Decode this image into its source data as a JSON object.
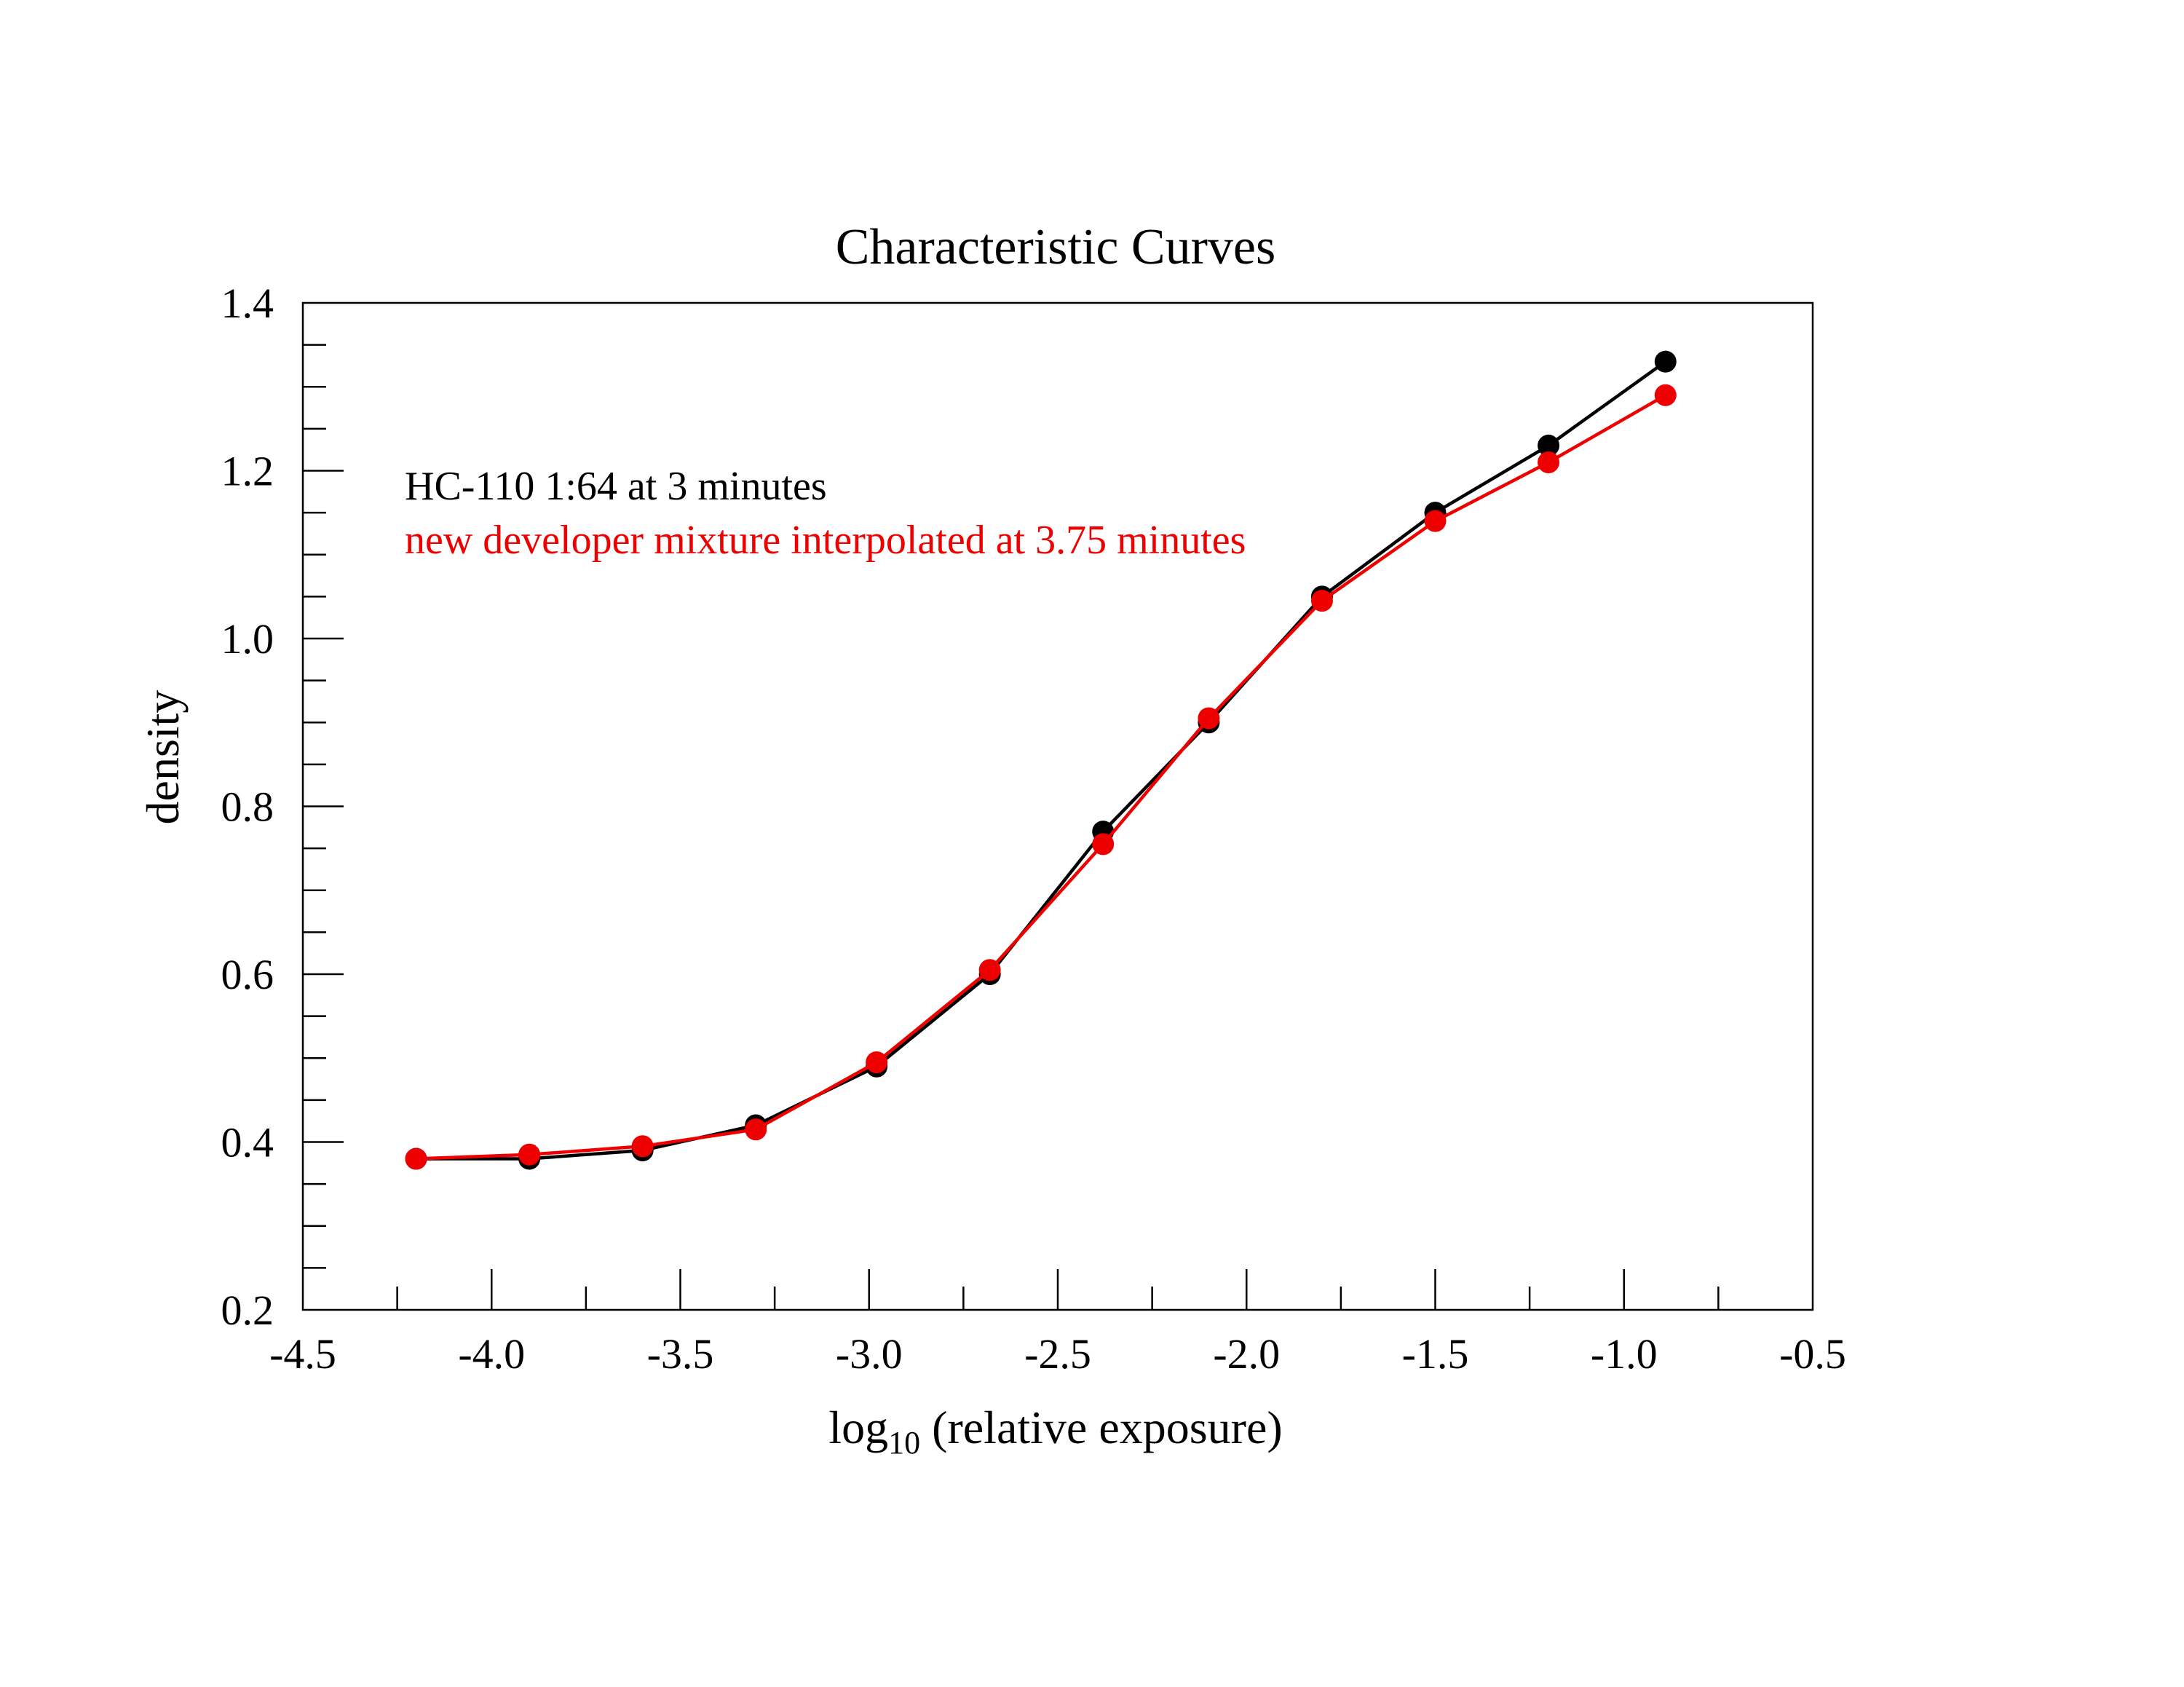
{
  "chart_data": {
    "type": "line",
    "title": "Characteristic Curves",
    "xlabel": {
      "prefix": "log",
      "subscript": "10",
      "suffix": " (relative exposure)"
    },
    "ylabel": "density",
    "xlim": [
      -4.5,
      -0.5
    ],
    "ylim": [
      0.2,
      1.4
    ],
    "x_major_ticks": [
      -4.5,
      -4.0,
      -3.5,
      -3.0,
      -2.5,
      -2.0,
      -1.5,
      -1.0,
      -0.5
    ],
    "x_tick_labels": [
      "-4.5",
      "-4.0",
      "-3.5",
      "-3.0",
      "-2.5",
      "-2.0",
      "-1.5",
      "-1.0",
      "-0.5"
    ],
    "y_major_ticks": [
      0.2,
      0.4,
      0.6,
      0.8,
      1.0,
      1.2,
      1.4
    ],
    "y_tick_labels": [
      "0.2",
      "0.4",
      "0.6",
      "0.8",
      "1.0",
      "1.2",
      "1.4"
    ],
    "grid": false,
    "series": [
      {
        "name": "HC-110 1:64 at 3 minutes",
        "color": "#000000",
        "x": [
          -4.2,
          -3.9,
          -3.6,
          -3.3,
          -2.98,
          -2.68,
          -2.38,
          -2.1,
          -1.8,
          -1.5,
          -1.2,
          -0.89
        ],
        "values": [
          0.38,
          0.38,
          0.39,
          0.42,
          0.49,
          0.6,
          0.77,
          0.9,
          1.05,
          1.15,
          1.23,
          1.33
        ]
      },
      {
        "name": "new developer mixture interpolated at 3.75 minutes",
        "color": "#ee0000",
        "x": [
          -4.2,
          -3.9,
          -3.6,
          -3.3,
          -2.98,
          -2.68,
          -2.38,
          -2.1,
          -1.8,
          -1.5,
          -1.2,
          -0.89
        ],
        "values": [
          0.38,
          0.385,
          0.395,
          0.415,
          0.495,
          0.605,
          0.755,
          0.905,
          1.045,
          1.14,
          1.21,
          1.29
        ]
      }
    ],
    "annotations": [
      {
        "text": "HC-110 1:64 at 3 minutes",
        "color": "#000000"
      },
      {
        "text": "new developer mixture interpolated at 3.75 minutes",
        "color": "#ee0000"
      }
    ]
  }
}
